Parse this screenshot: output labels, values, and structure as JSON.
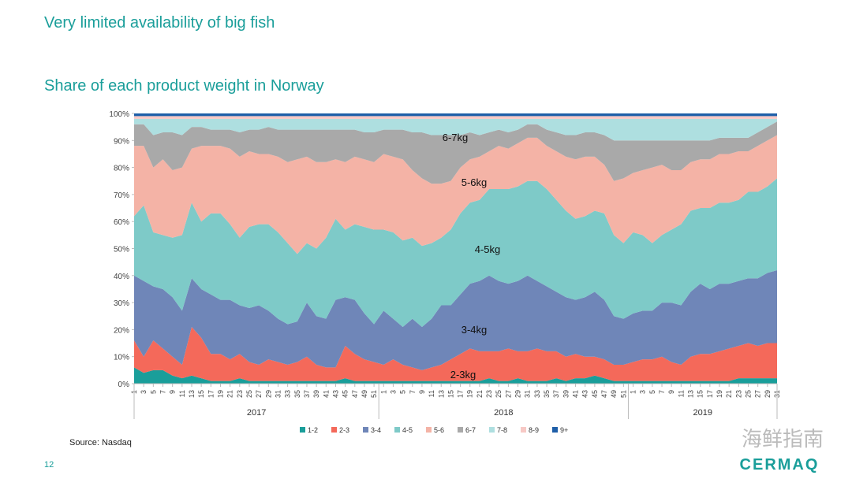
{
  "header": {
    "title": "Very limited availability of big fish",
    "page_number": "12",
    "logo": "CERMAQ",
    "watermark": "海鲜指南"
  },
  "chart_data": {
    "type": "stacked-area",
    "title": "Share of each product weight in Norway",
    "source": "Source: Nasdaq",
    "legend": "bottom",
    "categories": [
      "1",
      "3",
      "5",
      "7",
      "9",
      "11",
      "13",
      "15",
      "17",
      "19",
      "21",
      "23",
      "25",
      "27",
      "29",
      "31",
      "33",
      "35",
      "37",
      "39",
      "41",
      "43",
      "45",
      "47",
      "49",
      "51",
      "1",
      "3",
      "5",
      "7",
      "9",
      "11",
      "13",
      "15",
      "17",
      "19",
      "21",
      "23",
      "25",
      "27",
      "29",
      "31",
      "33",
      "35",
      "37",
      "39",
      "41",
      "43",
      "45",
      "47",
      "49",
      "51",
      "1",
      "3",
      "5",
      "7",
      "9",
      "11",
      "13",
      "15",
      "17",
      "19",
      "21",
      "23",
      "25",
      "27",
      "29",
      "31"
    ],
    "years": [
      "2017",
      "2018",
      "2019"
    ],
    "ylim": [
      0,
      100
    ],
    "yticks": [
      {
        "value": 0,
        "label": "0%"
      },
      {
        "value": 10,
        "label": "10%"
      },
      {
        "value": 20,
        "label": "20%"
      },
      {
        "value": 30,
        "label": "30%"
      },
      {
        "value": 40,
        "label": "40%"
      },
      {
        "value": 50,
        "label": "50%"
      },
      {
        "value": 60,
        "label": "60%"
      },
      {
        "value": 70,
        "label": "70%"
      },
      {
        "value": 80,
        "label": "80%"
      },
      {
        "value": 90,
        "label": "90%"
      },
      {
        "value": 100,
        "label": "100%"
      }
    ],
    "annotations": [
      "6-7kg",
      "5-6kg",
      "4-5kg",
      "3-4kg",
      "2-3kg"
    ],
    "series": [
      {
        "name": "1-2",
        "color": "#1a9e9a",
        "values": [
          6,
          4,
          5,
          5,
          3,
          2,
          3,
          2,
          1,
          1,
          1,
          2,
          1,
          1,
          1,
          1,
          1,
          1,
          1,
          1,
          1,
          1,
          2,
          1,
          1,
          1,
          1,
          1,
          1,
          1,
          1,
          1,
          1,
          1,
          1,
          1,
          1,
          2,
          1,
          1,
          2,
          1,
          1,
          1,
          2,
          1,
          2,
          2,
          3,
          2,
          1,
          1,
          1,
          1,
          1,
          1,
          1,
          1,
          1,
          1,
          1,
          1,
          1,
          2,
          2,
          2,
          2,
          2
        ]
      },
      {
        "name": "2-3",
        "color": "#f4695a",
        "values": [
          10,
          6,
          11,
          8,
          7,
          5,
          18,
          15,
          10,
          10,
          8,
          9,
          7,
          6,
          8,
          7,
          6,
          7,
          9,
          6,
          5,
          5,
          12,
          10,
          8,
          7,
          6,
          8,
          6,
          5,
          4,
          5,
          6,
          8,
          10,
          12,
          11,
          10,
          11,
          12,
          10,
          11,
          12,
          11,
          10,
          9,
          9,
          8,
          7,
          7,
          6,
          6,
          7,
          8,
          8,
          9,
          7,
          6,
          9,
          10,
          10,
          11,
          12,
          12,
          13,
          12,
          13,
          13
        ]
      },
      {
        "name": "3-4",
        "color": "#6f86b8",
        "values": [
          24,
          28,
          20,
          22,
          22,
          20,
          18,
          18,
          22,
          20,
          22,
          18,
          20,
          22,
          18,
          16,
          15,
          15,
          20,
          18,
          18,
          25,
          18,
          20,
          17,
          14,
          20,
          15,
          14,
          18,
          16,
          18,
          22,
          20,
          22,
          24,
          26,
          28,
          26,
          24,
          26,
          28,
          25,
          24,
          22,
          22,
          20,
          22,
          24,
          22,
          18,
          17,
          18,
          18,
          18,
          20,
          22,
          22,
          24,
          26,
          24,
          25,
          24,
          24,
          24,
          25,
          26,
          27
        ]
      },
      {
        "name": "4-5",
        "color": "#7ecac8",
        "values": [
          22,
          28,
          20,
          20,
          22,
          28,
          28,
          25,
          30,
          32,
          28,
          25,
          30,
          30,
          32,
          32,
          30,
          25,
          22,
          25,
          30,
          30,
          25,
          28,
          32,
          35,
          30,
          32,
          32,
          30,
          30,
          28,
          25,
          28,
          30,
          30,
          30,
          32,
          34,
          35,
          35,
          35,
          37,
          36,
          34,
          32,
          30,
          30,
          30,
          32,
          30,
          28,
          30,
          28,
          25,
          25,
          27,
          30,
          30,
          28,
          30,
          30,
          30,
          30,
          32,
          32,
          32,
          34
        ]
      },
      {
        "name": "5-6",
        "color": "#f4b3a6",
        "values": [
          26,
          22,
          24,
          28,
          25,
          25,
          20,
          28,
          25,
          25,
          28,
          30,
          28,
          26,
          26,
          28,
          30,
          35,
          32,
          32,
          28,
          22,
          25,
          25,
          25,
          25,
          28,
          28,
          30,
          25,
          25,
          22,
          20,
          18,
          17,
          16,
          16,
          14,
          16,
          15,
          16,
          16,
          16,
          16,
          18,
          20,
          22,
          22,
          20,
          18,
          20,
          24,
          22,
          24,
          28,
          26,
          22,
          20,
          18,
          18,
          18,
          18,
          18,
          18,
          15,
          17,
          17,
          16
        ]
      },
      {
        "name": "6-7",
        "color": "#a9a9a9",
        "values": [
          8,
          8,
          12,
          10,
          14,
          12,
          8,
          7,
          6,
          6,
          7,
          9,
          8,
          9,
          10,
          10,
          12,
          11,
          10,
          12,
          12,
          11,
          12,
          10,
          10,
          11,
          9,
          10,
          11,
          14,
          17,
          18,
          18,
          17,
          12,
          10,
          8,
          7,
          6,
          6,
          5,
          5,
          5,
          6,
          7,
          8,
          9,
          9,
          9,
          11,
          15,
          14,
          12,
          11,
          10,
          9,
          11,
          11,
          8,
          7,
          7,
          6,
          6,
          5,
          5,
          5,
          5,
          5
        ]
      },
      {
        "name": "7-8",
        "color": "#aedfe0",
        "values": [
          2,
          2,
          6,
          5,
          5,
          6,
          3,
          3,
          4,
          4,
          4,
          5,
          4,
          4,
          3,
          4,
          4,
          4,
          4,
          4,
          4,
          4,
          4,
          4,
          5,
          5,
          4,
          4,
          4,
          5,
          5,
          6,
          6,
          6,
          6,
          5,
          6,
          5,
          4,
          5,
          4,
          2,
          2,
          4,
          5,
          6,
          6,
          5,
          5,
          6,
          8,
          8,
          8,
          8,
          8,
          8,
          8,
          8,
          8,
          8,
          8,
          7,
          7,
          7,
          7,
          5,
          3,
          1
        ]
      },
      {
        "name": "8-9",
        "color": "#f7c9c5",
        "values": [
          1,
          1,
          1,
          1,
          1,
          1,
          1,
          1,
          1,
          1,
          1,
          1,
          1,
          1,
          1,
          1,
          1,
          1,
          1,
          1,
          1,
          1,
          1,
          1,
          1,
          1,
          1,
          1,
          1,
          1,
          1,
          1,
          1,
          1,
          1,
          1,
          1,
          1,
          1,
          1,
          1,
          1,
          1,
          1,
          1,
          1,
          1,
          1,
          1,
          1,
          1,
          1,
          1,
          1,
          1,
          1,
          1,
          1,
          1,
          1,
          1,
          1,
          1,
          1,
          1,
          1,
          1,
          1
        ]
      },
      {
        "name": "9+",
        "color": "#1f5fa8",
        "values": [
          1,
          1,
          1,
          1,
          1,
          1,
          1,
          1,
          1,
          1,
          1,
          1,
          1,
          1,
          1,
          1,
          1,
          1,
          1,
          1,
          1,
          1,
          1,
          1,
          1,
          1,
          1,
          1,
          1,
          1,
          1,
          1,
          1,
          1,
          1,
          1,
          1,
          1,
          1,
          1,
          1,
          1,
          1,
          1,
          1,
          1,
          1,
          1,
          1,
          1,
          1,
          1,
          1,
          1,
          1,
          1,
          1,
          1,
          1,
          1,
          1,
          1,
          1,
          1,
          1,
          1,
          1,
          1
        ]
      }
    ]
  }
}
